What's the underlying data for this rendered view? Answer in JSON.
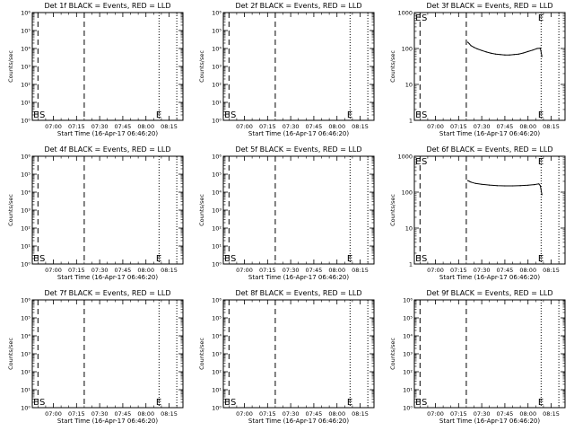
{
  "chart_data": [
    {
      "type": "line",
      "title": "Det 1f BLACK = Events, RED = LLD",
      "ylabel": "Counts/sec",
      "xlabel": "Start Time (16-Apr-17 06:46:20)",
      "yscale": "log",
      "ylim": [
        1,
        1000000
      ],
      "ytick_labels": [
        "10^0",
        "10^1",
        "10^2",
        "10^3",
        "10^4",
        "10^5",
        "10^6"
      ],
      "xtick_labels": [
        "07:00",
        "07:15",
        "07:30",
        "07:45",
        "08:00",
        "08:15"
      ],
      "xtick_minutes": [
        420,
        435,
        450,
        465,
        480,
        495
      ],
      "xlim_minutes": [
        406.33,
        504
      ],
      "dashed_lines_minutes": [
        410,
        440
      ],
      "dotted_lines_minutes": [
        488.5,
        500
      ],
      "markers": [
        {
          "label": "E",
          "x_minutes": 407
        },
        {
          "label": "S",
          "x_minutes": 411
        },
        {
          "label": "E",
          "x_minutes": 486.5
        }
      ],
      "series": []
    },
    {
      "type": "line",
      "title": "Det 2f BLACK = Events, RED = LLD",
      "ylabel": "Counts/sec",
      "xlabel": "Start Time (16-Apr-17 06:46:20)",
      "yscale": "log",
      "ylim": [
        1,
        1000000
      ],
      "ytick_labels": [
        "10^0",
        "10^1",
        "10^2",
        "10^3",
        "10^4",
        "10^5",
        "10^6"
      ],
      "xtick_labels": [
        "07:00",
        "07:15",
        "07:30",
        "07:45",
        "08:00",
        "08:15"
      ],
      "xtick_minutes": [
        420,
        435,
        450,
        465,
        480,
        495
      ],
      "xlim_minutes": [
        406.33,
        504
      ],
      "dashed_lines_minutes": [
        410,
        440
      ],
      "dotted_lines_minutes": [
        488.5,
        500
      ],
      "markers": [
        {
          "label": "E",
          "x_minutes": 407
        },
        {
          "label": "S",
          "x_minutes": 411
        },
        {
          "label": "E",
          "x_minutes": 486.5
        }
      ],
      "series": []
    },
    {
      "type": "line",
      "title": "Det 3f BLACK = Events, RED = LLD",
      "ylabel": "Counts/sec",
      "xlabel": "Start Time (16-Apr-17 06:46:20)",
      "yscale": "log",
      "ylim": [
        1,
        1000
      ],
      "ytick_labels": [
        "1",
        "10",
        "100",
        "1000"
      ],
      "xtick_labels": [
        "07:00",
        "07:15",
        "07:30",
        "07:45",
        "08:00",
        "08:15"
      ],
      "xtick_minutes": [
        420,
        435,
        450,
        465,
        480,
        495
      ],
      "xlim_minutes": [
        406.33,
        504
      ],
      "dashed_lines_minutes": [
        410,
        440
      ],
      "dotted_lines_minutes": [
        488.5,
        500
      ],
      "markers": [
        {
          "label": "E",
          "x_minutes": 407
        },
        {
          "label": "S",
          "x_minutes": 411
        },
        {
          "label": "E",
          "x_minutes": 486.5
        }
      ],
      "series": [
        {
          "color": "#000000",
          "x_minutes": [
            441,
            442,
            443,
            445,
            447,
            450,
            453,
            456,
            459,
            462,
            465,
            468,
            471,
            474,
            477,
            480,
            483,
            486,
            488,
            489
          ],
          "values": [
            150,
            135,
            120,
            108,
            98,
            88,
            80,
            74,
            70,
            68,
            66,
            66,
            68,
            70,
            75,
            82,
            90,
            100,
            102,
            60
          ]
        }
      ]
    },
    {
      "type": "line",
      "title": "Det 4f BLACK = Events, RED = LLD",
      "ylabel": "Counts/sec",
      "xlabel": "Start Time (16-Apr-17 06:46:20)",
      "yscale": "log",
      "ylim": [
        1,
        1000000
      ],
      "ytick_labels": [
        "10^0",
        "10^1",
        "10^2",
        "10^3",
        "10^4",
        "10^5",
        "10^6"
      ],
      "xtick_labels": [
        "07:00",
        "07:15",
        "07:30",
        "07:45",
        "08:00",
        "08:15"
      ],
      "xtick_minutes": [
        420,
        435,
        450,
        465,
        480,
        495
      ],
      "xlim_minutes": [
        406.33,
        504
      ],
      "dashed_lines_minutes": [
        410,
        440
      ],
      "dotted_lines_minutes": [
        488.5,
        500
      ],
      "markers": [
        {
          "label": "E",
          "x_minutes": 407
        },
        {
          "label": "S",
          "x_minutes": 411
        },
        {
          "label": "E",
          "x_minutes": 486.5
        }
      ],
      "series": []
    },
    {
      "type": "line",
      "title": "Det 5f BLACK = Events, RED = LLD",
      "ylabel": "Counts/sec",
      "xlabel": "Start Time (16-Apr-17 06:46:20)",
      "yscale": "log",
      "ylim": [
        1,
        1000000
      ],
      "ytick_labels": [
        "10^0",
        "10^1",
        "10^2",
        "10^3",
        "10^4",
        "10^5",
        "10^6"
      ],
      "xtick_labels": [
        "07:00",
        "07:15",
        "07:30",
        "07:45",
        "08:00",
        "08:15"
      ],
      "xtick_minutes": [
        420,
        435,
        450,
        465,
        480,
        495
      ],
      "xlim_minutes": [
        406.33,
        504
      ],
      "dashed_lines_minutes": [
        410,
        440
      ],
      "dotted_lines_minutes": [
        488.5,
        500
      ],
      "markers": [
        {
          "label": "E",
          "x_minutes": 407
        },
        {
          "label": "S",
          "x_minutes": 411
        },
        {
          "label": "E",
          "x_minutes": 486.5
        }
      ],
      "series": []
    },
    {
      "type": "line",
      "title": "Det 6f BLACK = Events, RED = LLD",
      "ylabel": "Counts/sec",
      "xlabel": "Start Time (16-Apr-17 06:46:20)",
      "yscale": "log",
      "ylim": [
        1,
        1000
      ],
      "ytick_labels": [
        "1",
        "10",
        "100",
        "1000"
      ],
      "xtick_labels": [
        "07:00",
        "07:15",
        "07:30",
        "07:45",
        "08:00",
        "08:15"
      ],
      "xtick_minutes": [
        420,
        435,
        450,
        465,
        480,
        495
      ],
      "xlim_minutes": [
        406.33,
        504
      ],
      "dashed_lines_minutes": [
        410,
        440
      ],
      "dotted_lines_minutes": [
        488.5,
        500
      ],
      "markers": [
        {
          "label": "E",
          "x_minutes": 407
        },
        {
          "label": "S",
          "x_minutes": 411
        },
        {
          "label": "E",
          "x_minutes": 486.5
        }
      ],
      "series": [
        {
          "color": "#000000",
          "x_minutes": [
            441,
            442,
            443,
            446,
            450,
            455,
            460,
            465,
            470,
            475,
            480,
            484,
            487,
            488,
            489
          ],
          "values": [
            210,
            200,
            190,
            175,
            165,
            158,
            152,
            150,
            150,
            152,
            156,
            162,
            170,
            150,
            85
          ]
        }
      ]
    },
    {
      "type": "line",
      "title": "Det 7f BLACK = Events, RED = LLD",
      "ylabel": "Counts/sec",
      "xlabel": "Start Time (16-Apr-17 06:46:20)",
      "yscale": "log",
      "ylim": [
        1,
        1000000
      ],
      "ytick_labels": [
        "10^0",
        "10^1",
        "10^2",
        "10^3",
        "10^4",
        "10^5",
        "10^6"
      ],
      "xtick_labels": [
        "07:00",
        "07:15",
        "07:30",
        "07:45",
        "08:00",
        "08:15"
      ],
      "xtick_minutes": [
        420,
        435,
        450,
        465,
        480,
        495
      ],
      "xlim_minutes": [
        406.33,
        504
      ],
      "dashed_lines_minutes": [
        410,
        440
      ],
      "dotted_lines_minutes": [
        488.5,
        500
      ],
      "markers": [
        {
          "label": "E",
          "x_minutes": 407
        },
        {
          "label": "S",
          "x_minutes": 411
        },
        {
          "label": "E",
          "x_minutes": 486.5
        }
      ],
      "series": []
    },
    {
      "type": "line",
      "title": "Det 8f BLACK = Events, RED = LLD",
      "ylabel": "Counts/sec",
      "xlabel": "Start Time (16-Apr-17 06:46:20)",
      "yscale": "log",
      "ylim": [
        1,
        1000000
      ],
      "ytick_labels": [
        "10^0",
        "10^1",
        "10^2",
        "10^3",
        "10^4",
        "10^5",
        "10^6"
      ],
      "xtick_labels": [
        "07:00",
        "07:15",
        "07:30",
        "07:45",
        "08:00",
        "08:15"
      ],
      "xtick_minutes": [
        420,
        435,
        450,
        465,
        480,
        495
      ],
      "xlim_minutes": [
        406.33,
        504
      ],
      "dashed_lines_minutes": [
        410,
        440
      ],
      "dotted_lines_minutes": [
        488.5,
        500
      ],
      "markers": [
        {
          "label": "E",
          "x_minutes": 407
        },
        {
          "label": "S",
          "x_minutes": 411
        },
        {
          "label": "E",
          "x_minutes": 486.5
        }
      ],
      "series": []
    },
    {
      "type": "line",
      "title": "Det 9f BLACK = Events, RED = LLD",
      "ylabel": "Counts/sec",
      "xlabel": "Start Time (16-Apr-17 06:46:20)",
      "yscale": "log",
      "ylim": [
        1,
        1000000
      ],
      "ytick_labels": [
        "10^0",
        "10^1",
        "10^2",
        "10^3",
        "10^4",
        "10^5",
        "10^6"
      ],
      "xtick_labels": [
        "07:00",
        "07:15",
        "07:30",
        "07:45",
        "08:00",
        "08:15"
      ],
      "xtick_minutes": [
        420,
        435,
        450,
        465,
        480,
        495
      ],
      "xlim_minutes": [
        406.33,
        504
      ],
      "dashed_lines_minutes": [
        410,
        440
      ],
      "dotted_lines_minutes": [
        488.5,
        500
      ],
      "markers": [
        {
          "label": "E",
          "x_minutes": 407
        },
        {
          "label": "S",
          "x_minutes": 411
        },
        {
          "label": "E",
          "x_minutes": 486.5
        }
      ],
      "series": []
    }
  ]
}
